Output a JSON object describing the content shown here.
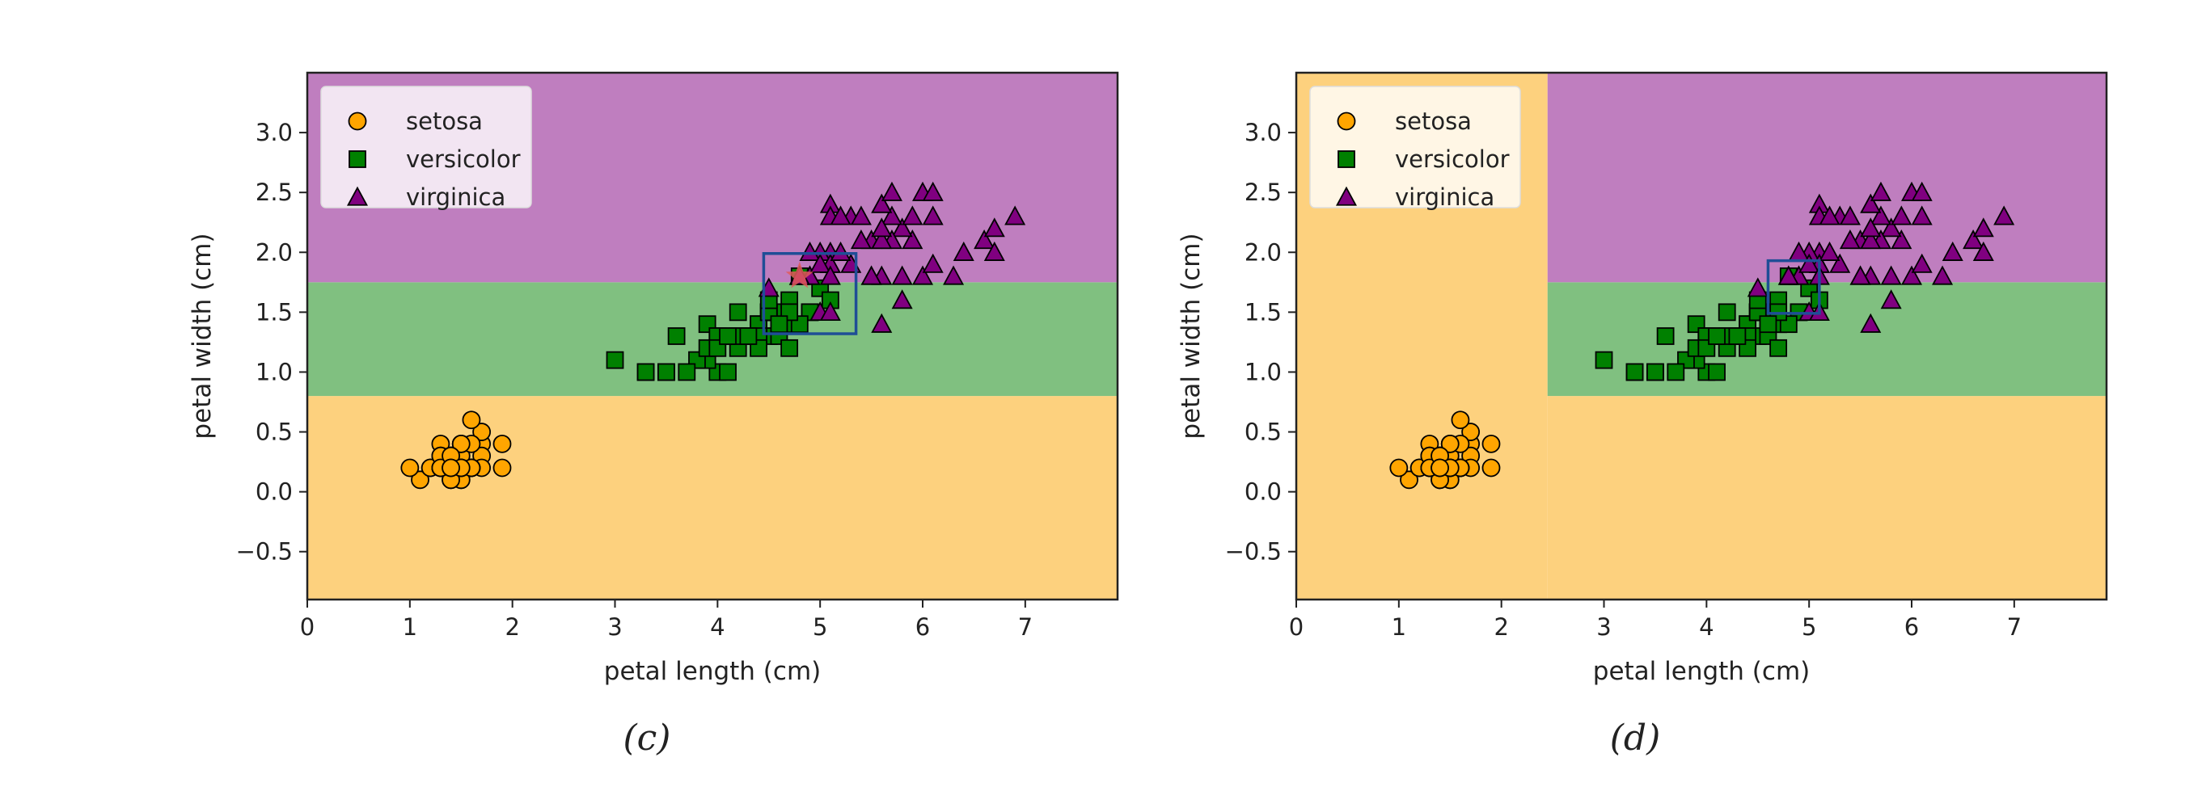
{
  "colors": {
    "setosa": "#FFA500",
    "versicolor": "#008000",
    "virginica": "#800080",
    "region_setosa": "#FDD17E",
    "region_versicolor": "#80C080",
    "region_virginica": "#BF7EBF",
    "box": "#1F4E96",
    "star": "#E05A5A"
  },
  "chart_data": [
    {
      "type": "scatter",
      "panel": "c",
      "caption": "(c)",
      "xlabel": "petal length (cm)",
      "ylabel": "petal width (cm)",
      "xlim": [
        0,
        7.9
      ],
      "ylim": [
        -0.9,
        3.5
      ],
      "xticks": [
        "0",
        "1",
        "2",
        "3",
        "4",
        "5",
        "6",
        "7"
      ],
      "yticks": [
        "−0.5",
        "0.0",
        "0.5",
        "1.0",
        "1.5",
        "2.0",
        "2.5",
        "3.0"
      ],
      "ytick_values": [
        -0.5,
        0.0,
        0.5,
        1.0,
        1.5,
        2.0,
        2.5,
        3.0
      ],
      "regions": [
        {
          "class": "setosa",
          "x0": 0,
          "x1": 7.9,
          "y0": -0.9,
          "y1": 0.8
        },
        {
          "class": "versicolor",
          "x0": 0,
          "x1": 7.9,
          "y0": 0.8,
          "y1": 1.75
        },
        {
          "class": "virginica",
          "x0": 0,
          "x1": 7.9,
          "y0": 1.75,
          "y1": 3.5
        }
      ],
      "box": {
        "x0": 4.45,
        "x1": 5.35,
        "y0": 1.32,
        "y1": 1.99
      },
      "star": {
        "x": 4.8,
        "y": 1.8
      },
      "legend": [
        "setosa",
        "versicolor",
        "virginica"
      ]
    },
    {
      "type": "scatter",
      "panel": "d",
      "caption": "(d)",
      "xlabel": "petal length (cm)",
      "ylabel": "petal width (cm)",
      "xlim": [
        0,
        7.9
      ],
      "ylim": [
        -0.9,
        3.5
      ],
      "xticks": [
        "0",
        "1",
        "2",
        "3",
        "4",
        "5",
        "6",
        "7"
      ],
      "yticks": [
        "−0.5",
        "0.0",
        "0.5",
        "1.0",
        "1.5",
        "2.0",
        "2.5",
        "3.0"
      ],
      "ytick_values": [
        -0.5,
        0.0,
        0.5,
        1.0,
        1.5,
        2.0,
        2.5,
        3.0
      ],
      "regions": [
        {
          "class": "setosa",
          "x0": 0,
          "x1": 2.45,
          "y0": -0.9,
          "y1": 3.5
        },
        {
          "class": "setosa",
          "x0": 2.45,
          "x1": 7.9,
          "y0": -0.9,
          "y1": 0.8
        },
        {
          "class": "versicolor",
          "x0": 2.45,
          "x1": 7.9,
          "y0": 0.8,
          "y1": 1.75
        },
        {
          "class": "virginica",
          "x0": 2.45,
          "x1": 7.9,
          "y0": 1.75,
          "y1": 3.5
        }
      ],
      "box": {
        "x0": 4.6,
        "x1": 5.1,
        "y0": 1.49,
        "y1": 1.93
      },
      "legend": [
        "setosa",
        "versicolor",
        "virginica"
      ]
    }
  ],
  "series": [
    {
      "name": "setosa",
      "marker": "circle",
      "points": [
        [
          1.4,
          0.2
        ],
        [
          1.4,
          0.2
        ],
        [
          1.3,
          0.2
        ],
        [
          1.5,
          0.2
        ],
        [
          1.4,
          0.2
        ],
        [
          1.7,
          0.4
        ],
        [
          1.4,
          0.3
        ],
        [
          1.5,
          0.2
        ],
        [
          1.4,
          0.2
        ],
        [
          1.5,
          0.1
        ],
        [
          1.5,
          0.2
        ],
        [
          1.6,
          0.2
        ],
        [
          1.4,
          0.1
        ],
        [
          1.1,
          0.1
        ],
        [
          1.2,
          0.2
        ],
        [
          1.5,
          0.4
        ],
        [
          1.3,
          0.4
        ],
        [
          1.4,
          0.3
        ],
        [
          1.7,
          0.3
        ],
        [
          1.5,
          0.3
        ],
        [
          1.7,
          0.2
        ],
        [
          1.5,
          0.4
        ],
        [
          1.0,
          0.2
        ],
        [
          1.7,
          0.5
        ],
        [
          1.9,
          0.2
        ],
        [
          1.6,
          0.2
        ],
        [
          1.6,
          0.4
        ],
        [
          1.5,
          0.2
        ],
        [
          1.4,
          0.2
        ],
        [
          1.6,
          0.2
        ],
        [
          1.6,
          0.2
        ],
        [
          1.5,
          0.4
        ],
        [
          1.5,
          0.1
        ],
        [
          1.4,
          0.2
        ],
        [
          1.5,
          0.2
        ],
        [
          1.2,
          0.2
        ],
        [
          1.3,
          0.2
        ],
        [
          1.4,
          0.1
        ],
        [
          1.3,
          0.2
        ],
        [
          1.5,
          0.2
        ],
        [
          1.3,
          0.3
        ],
        [
          1.3,
          0.3
        ],
        [
          1.3,
          0.2
        ],
        [
          1.6,
          0.6
        ],
        [
          1.9,
          0.4
        ],
        [
          1.4,
          0.3
        ],
        [
          1.6,
          0.2
        ],
        [
          1.4,
          0.2
        ],
        [
          1.5,
          0.2
        ],
        [
          1.4,
          0.2
        ]
      ]
    },
    {
      "name": "versicolor",
      "marker": "square",
      "points": [
        [
          4.7,
          1.4
        ],
        [
          4.5,
          1.5
        ],
        [
          4.9,
          1.5
        ],
        [
          4.0,
          1.3
        ],
        [
          4.6,
          1.5
        ],
        [
          4.5,
          1.3
        ],
        [
          4.7,
          1.6
        ],
        [
          3.3,
          1.0
        ],
        [
          4.6,
          1.3
        ],
        [
          3.9,
          1.4
        ],
        [
          3.5,
          1.0
        ],
        [
          4.2,
          1.5
        ],
        [
          4.0,
          1.0
        ],
        [
          4.7,
          1.4
        ],
        [
          3.6,
          1.3
        ],
        [
          4.4,
          1.4
        ],
        [
          4.5,
          1.5
        ],
        [
          4.1,
          1.0
        ],
        [
          4.5,
          1.5
        ],
        [
          3.9,
          1.1
        ],
        [
          4.8,
          1.8
        ],
        [
          4.0,
          1.3
        ],
        [
          4.9,
          1.5
        ],
        [
          4.7,
          1.2
        ],
        [
          4.3,
          1.3
        ],
        [
          4.4,
          1.4
        ],
        [
          4.8,
          1.4
        ],
        [
          5.0,
          1.7
        ],
        [
          4.5,
          1.5
        ],
        [
          3.5,
          1.0
        ],
        [
          3.8,
          1.1
        ],
        [
          3.7,
          1.0
        ],
        [
          3.9,
          1.2
        ],
        [
          5.1,
          1.6
        ],
        [
          4.5,
          1.5
        ],
        [
          4.5,
          1.6
        ],
        [
          4.7,
          1.5
        ],
        [
          4.4,
          1.3
        ],
        [
          4.1,
          1.3
        ],
        [
          4.0,
          1.3
        ],
        [
          4.4,
          1.2
        ],
        [
          4.6,
          1.4
        ],
        [
          4.0,
          1.2
        ],
        [
          3.3,
          1.0
        ],
        [
          4.2,
          1.3
        ],
        [
          4.2,
          1.2
        ],
        [
          4.2,
          1.3
        ],
        [
          4.3,
          1.3
        ],
        [
          3.0,
          1.1
        ],
        [
          4.1,
          1.3
        ]
      ]
    },
    {
      "name": "virginica",
      "marker": "triangle",
      "points": [
        [
          6.0,
          2.5
        ],
        [
          5.1,
          1.9
        ],
        [
          5.9,
          2.1
        ],
        [
          5.6,
          1.8
        ],
        [
          5.8,
          2.2
        ],
        [
          6.6,
          2.1
        ],
        [
          4.5,
          1.7
        ],
        [
          6.3,
          1.8
        ],
        [
          5.8,
          1.8
        ],
        [
          6.1,
          2.5
        ],
        [
          5.1,
          2.0
        ],
        [
          5.3,
          1.9
        ],
        [
          5.5,
          2.1
        ],
        [
          5.0,
          2.0
        ],
        [
          5.1,
          2.4
        ],
        [
          5.3,
          2.3
        ],
        [
          5.5,
          1.8
        ],
        [
          6.7,
          2.2
        ],
        [
          6.9,
          2.3
        ],
        [
          5.0,
          1.5
        ],
        [
          5.7,
          2.3
        ],
        [
          4.9,
          2.0
        ],
        [
          6.7,
          2.0
        ],
        [
          4.9,
          1.8
        ],
        [
          5.7,
          2.1
        ],
        [
          6.0,
          1.8
        ],
        [
          4.8,
          1.8
        ],
        [
          4.9,
          1.8
        ],
        [
          5.6,
          2.1
        ],
        [
          5.8,
          1.6
        ],
        [
          6.1,
          1.9
        ],
        [
          6.4,
          2.0
        ],
        [
          5.6,
          2.2
        ],
        [
          5.1,
          1.5
        ],
        [
          5.6,
          1.4
        ],
        [
          6.1,
          2.3
        ],
        [
          5.6,
          2.4
        ],
        [
          5.5,
          1.8
        ],
        [
          4.8,
          1.8
        ],
        [
          5.4,
          2.1
        ],
        [
          5.6,
          2.4
        ],
        [
          5.1,
          2.3
        ],
        [
          5.1,
          1.9
        ],
        [
          5.9,
          2.3
        ],
        [
          5.7,
          2.5
        ],
        [
          5.2,
          2.3
        ],
        [
          5.0,
          1.9
        ],
        [
          5.2,
          2.0
        ],
        [
          5.4,
          2.3
        ],
        [
          5.1,
          1.8
        ]
      ]
    }
  ]
}
